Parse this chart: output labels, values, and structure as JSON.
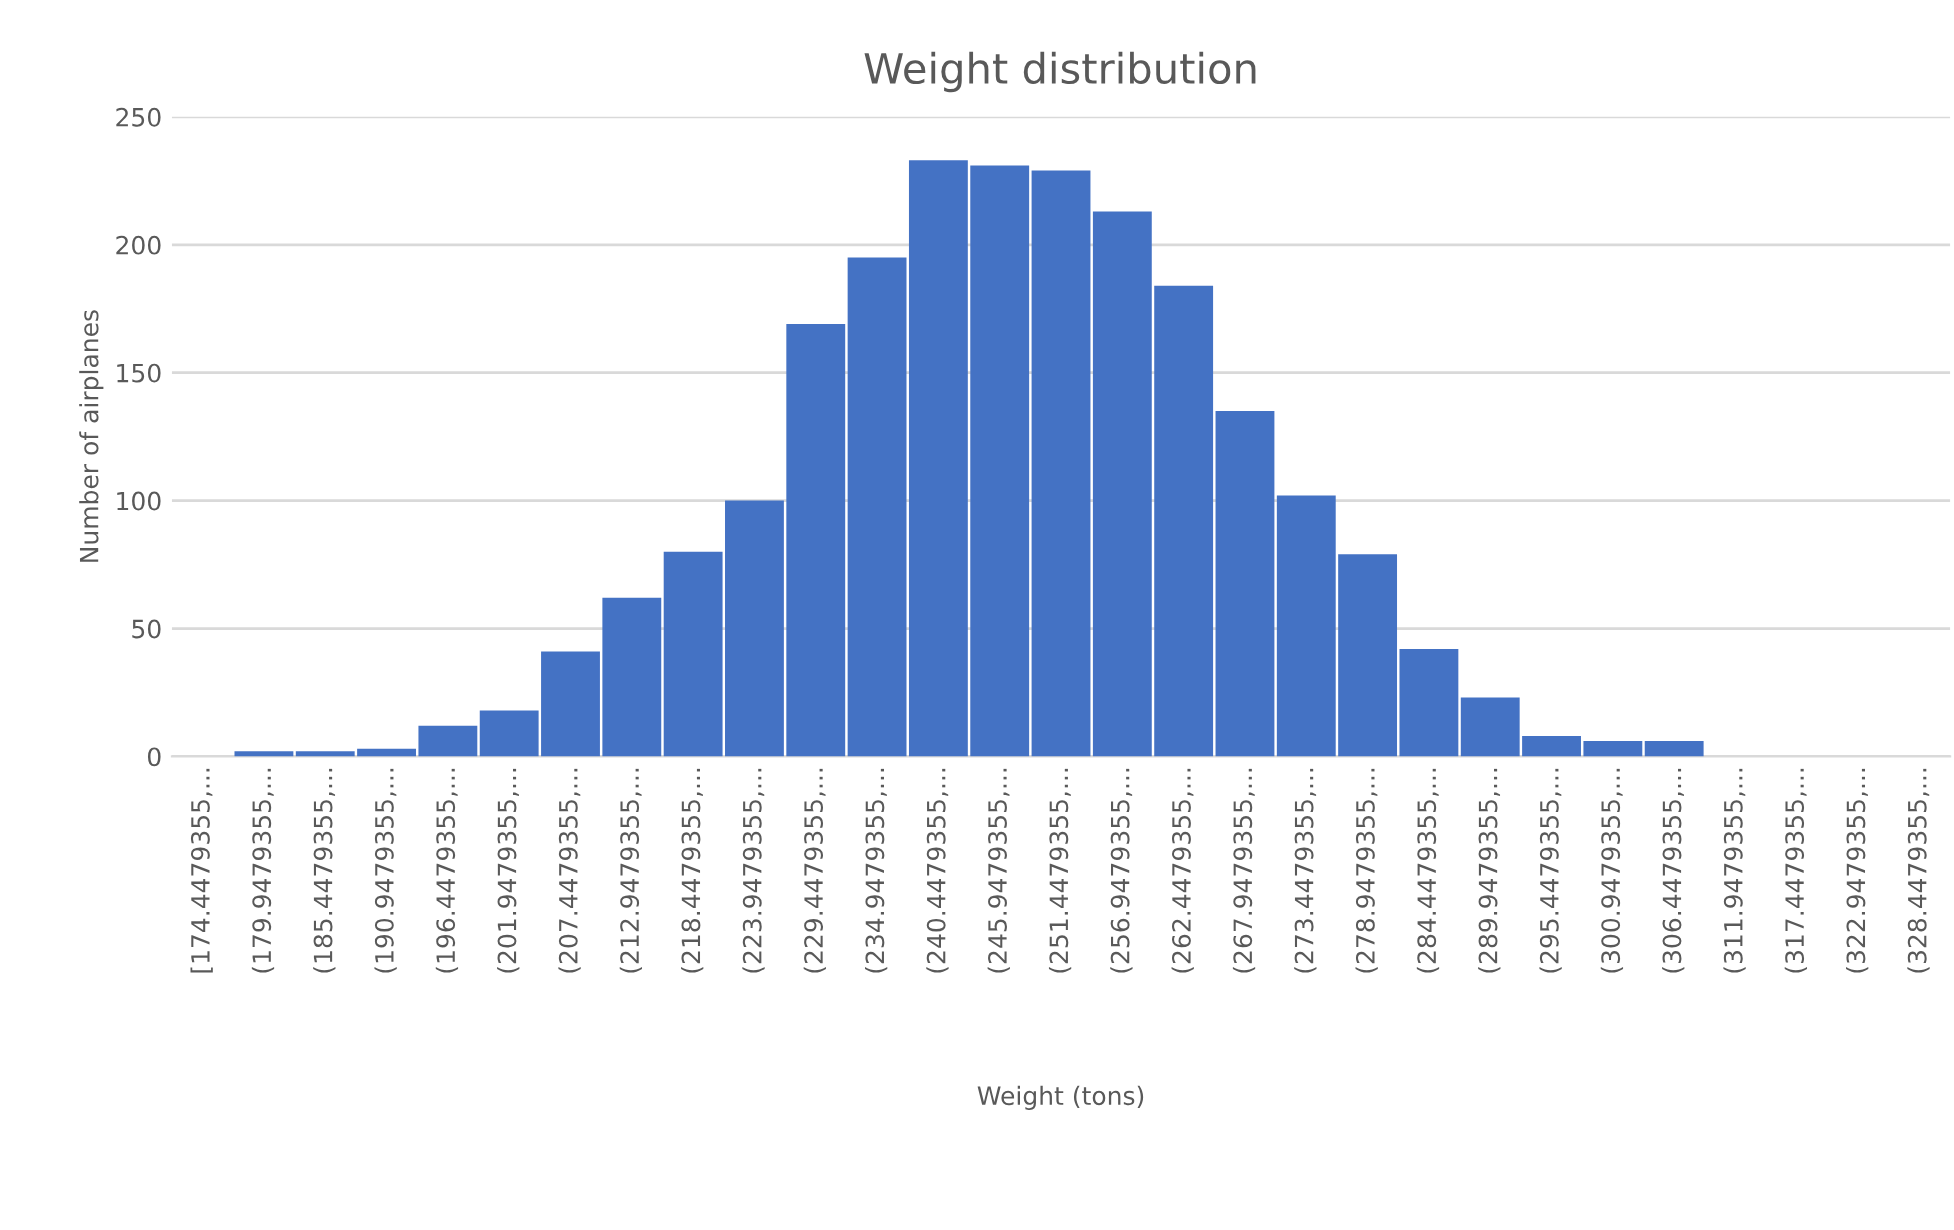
{
  "chart_data": {
    "type": "bar",
    "title": "Weight distribution",
    "xlabel": "Weight (tons)",
    "ylabel": "Number of airplanes",
    "categories": [
      "[174.4479355,...",
      "(179.9479355,...",
      "(185.4479355,...",
      "(190.9479355,...",
      "(196.4479355,...",
      "(201.9479355,...",
      "(207.4479355,...",
      "(212.9479355,...",
      "(218.4479355,...",
      "(223.9479355,...",
      "(229.4479355,...",
      "(234.9479355,...",
      "(240.4479355,...",
      "(245.9479355,...",
      "(251.4479355,...",
      "(256.9479355,...",
      "(262.4479355,...",
      "(267.9479355,...",
      "(273.4479355,...",
      "(278.9479355,...",
      "(284.4479355,...",
      "(289.9479355,...",
      "(295.4479355,...",
      "(300.9479355,...",
      "(306.4479355,...",
      "(311.9479355,...",
      "(317.4479355,...",
      "(322.9479355,...",
      "(328.4479355,..."
    ],
    "values": [
      0,
      2,
      2,
      3,
      12,
      18,
      41,
      62,
      80,
      100,
      169,
      195,
      233,
      231,
      229,
      213,
      184,
      135,
      102,
      79,
      42,
      23,
      8,
      6,
      6,
      0,
      0,
      0,
      0
    ],
    "color": "#4472c4",
    "ylim": [
      0,
      250
    ],
    "yticks": [
      0,
      50,
      100,
      150,
      200,
      250
    ],
    "grid": "y",
    "legend": false
  }
}
